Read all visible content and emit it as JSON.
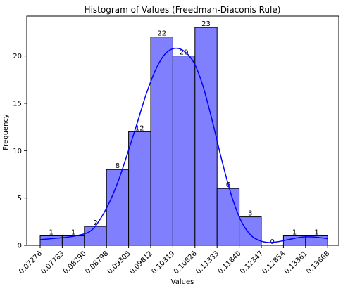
{
  "chart_data": {
    "type": "bar",
    "title": "Histogram of Values (Freedman-Diaconis Rule)",
    "xlabel": "Values",
    "ylabel": "Frequency",
    "bin_edges": [
      "0.07276",
      "0.07783",
      "0.08290",
      "0.08798",
      "0.09305",
      "0.09812",
      "0.10319",
      "0.10826",
      "0.11333",
      "0.11840",
      "0.12347",
      "0.12854",
      "0.13361",
      "0.13868"
    ],
    "values": [
      1,
      1,
      2,
      8,
      12,
      22,
      20,
      23,
      6,
      3,
      0,
      1,
      1
    ],
    "y_ticks": [
      0,
      5,
      10,
      15,
      20
    ],
    "ylim": [
      0,
      24.2
    ],
    "x_tick_rotation": 45,
    "bar_fill": "#8080ff",
    "bar_edge": "#000000",
    "kde_color": "#0000ff",
    "kde_curve": [
      [
        0.07276,
        0.6
      ],
      [
        0.0765,
        0.75
      ],
      [
        0.0803,
        0.95
      ],
      [
        0.0841,
        1.45
      ],
      [
        0.0863,
        2.6
      ],
      [
        0.0885,
        4.4
      ],
      [
        0.0906,
        6.7
      ],
      [
        0.0928,
        9.7
      ],
      [
        0.095,
        12.9
      ],
      [
        0.0971,
        16.0
      ],
      [
        0.0993,
        18.6
      ],
      [
        0.1014,
        20.2
      ],
      [
        0.1036,
        20.8
      ],
      [
        0.1058,
        20.5
      ],
      [
        0.108,
        19.3
      ],
      [
        0.1101,
        16.8
      ],
      [
        0.1123,
        13.0
      ],
      [
        0.1144,
        9.0
      ],
      [
        0.1166,
        5.3
      ],
      [
        0.1188,
        2.6
      ],
      [
        0.121,
        1.1
      ],
      [
        0.1231,
        0.5
      ],
      [
        0.1253,
        0.3
      ],
      [
        0.1275,
        0.4
      ],
      [
        0.1296,
        0.6
      ],
      [
        0.1318,
        0.8
      ],
      [
        0.134,
        0.9
      ],
      [
        0.1361,
        0.85
      ],
      [
        0.13868,
        0.7
      ]
    ],
    "grid": false,
    "legend": "none"
  }
}
